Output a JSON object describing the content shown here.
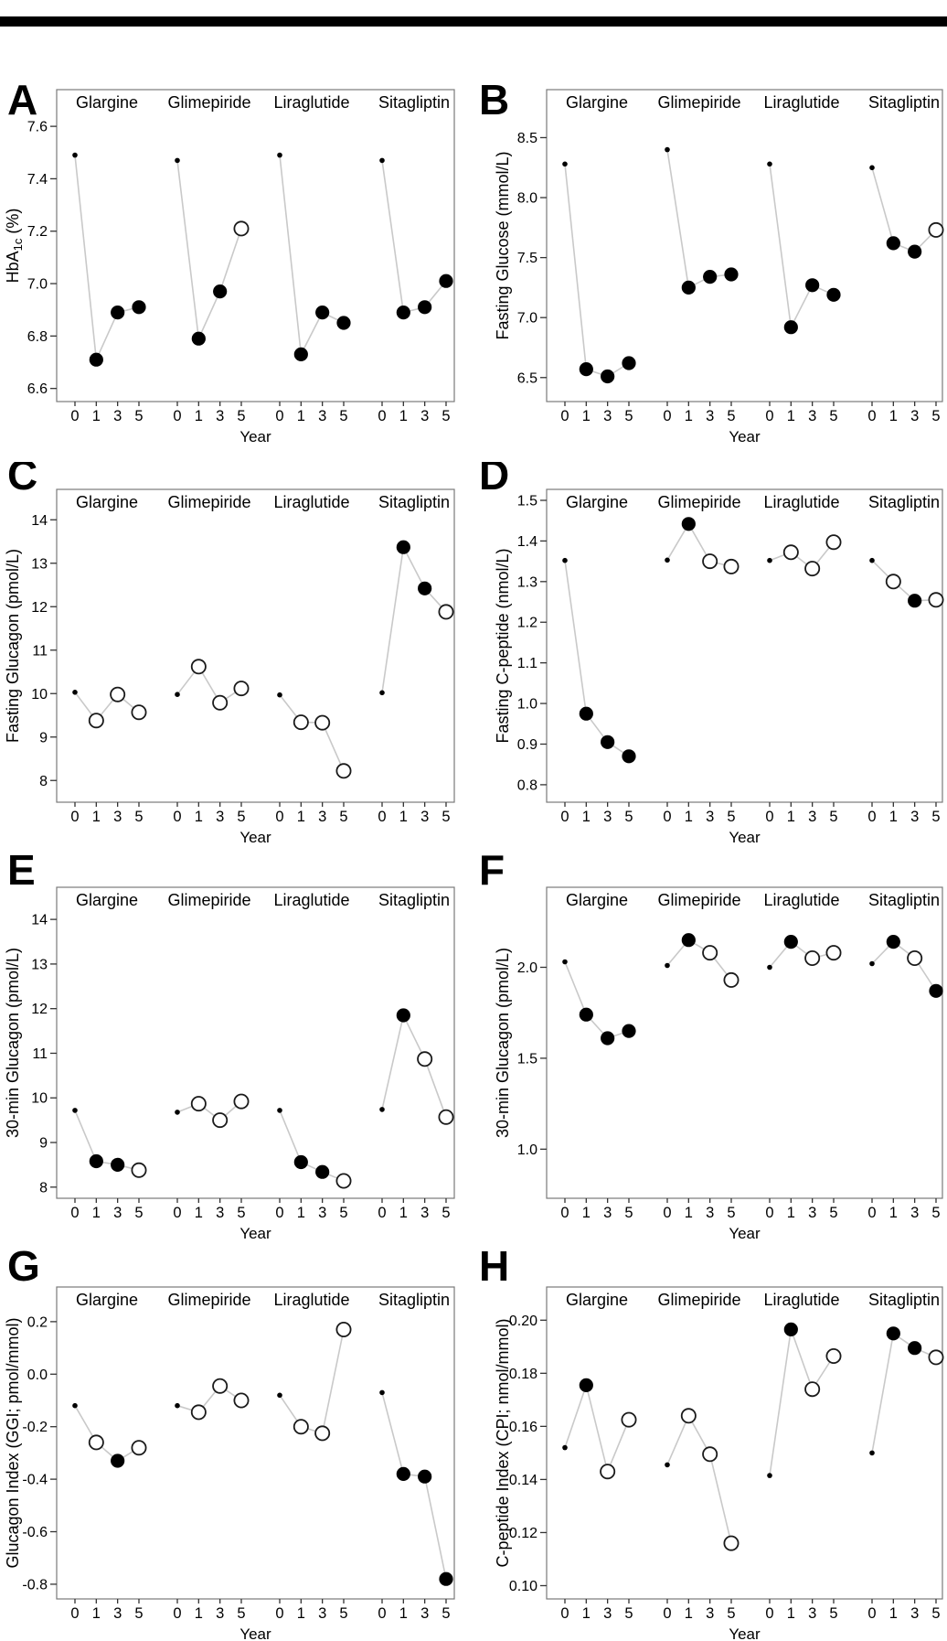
{
  "page": {
    "top_bar_color": "#000000",
    "background": "#ffffff"
  },
  "chart_data": {
    "type": "scatter",
    "layout": "grid-4rows-2cols",
    "xlabel": "Year",
    "x_years": [
      0,
      1,
      3,
      5
    ],
    "x_tick_labels": [
      "0",
      "1",
      "3",
      "5"
    ],
    "group_names": [
      "Glargine",
      "Glimepiride",
      "Liraglutide",
      "Sitagliptin"
    ],
    "marker_meaning": {
      "dot": "small baseline dot at year 0",
      "filled": "filled circle",
      "open": "open circle"
    },
    "style": {
      "marker_color": "#000000",
      "open_marker_fill": "#ffffff",
      "open_marker_stroke": "#1a1a1a",
      "connector_line_color": "#c9c9c9",
      "frame_color": "#7a7a7a",
      "tick_color": "#333333",
      "text_color": "#000000"
    },
    "panels": [
      {
        "id": "A",
        "ylabel": "HbA1c (%)",
        "ylabel_parts": [
          {
            "t": "HbA"
          },
          {
            "t": "1c",
            "sub": true
          },
          {
            "t": " (%)"
          }
        ],
        "yticks": [
          6.6,
          6.8,
          7.0,
          7.2,
          7.4,
          7.6
        ],
        "ytick_labels": [
          "6.6",
          "6.8",
          "7.0",
          "7.2",
          "7.4",
          "7.6"
        ],
        "ylim": [
          6.55,
          7.74
        ],
        "series": [
          {
            "group": "Glargine",
            "values": [
              7.49,
              6.71,
              6.89,
              6.91
            ],
            "markers": [
              "dot",
              "filled",
              "filled",
              "filled"
            ]
          },
          {
            "group": "Glimepiride",
            "values": [
              7.47,
              6.79,
              6.97,
              7.21
            ],
            "markers": [
              "dot",
              "filled",
              "filled",
              "open"
            ]
          },
          {
            "group": "Liraglutide",
            "values": [
              7.49,
              6.73,
              6.89,
              6.85
            ],
            "markers": [
              "dot",
              "filled",
              "filled",
              "filled"
            ]
          },
          {
            "group": "Sitagliptin",
            "values": [
              7.47,
              6.89,
              6.91,
              7.01
            ],
            "markers": [
              "dot",
              "filled",
              "filled",
              "filled"
            ]
          }
        ]
      },
      {
        "id": "B",
        "ylabel": "Fasting Glucose (mmol/L)",
        "ylabel_parts": [
          {
            "t": "Fasting Glucose (mmol/L)"
          }
        ],
        "yticks": [
          6.5,
          7.0,
          7.5,
          8.0,
          8.5
        ],
        "ytick_labels": [
          "6.5",
          "7.0",
          "7.5",
          "8.0",
          "8.5"
        ],
        "ylim": [
          6.3,
          8.9
        ],
        "series": [
          {
            "group": "Glargine",
            "values": [
              8.28,
              6.57,
              6.51,
              6.62
            ],
            "markers": [
              "dot",
              "filled",
              "filled",
              "filled"
            ]
          },
          {
            "group": "Glimepiride",
            "values": [
              8.4,
              7.25,
              7.34,
              7.36
            ],
            "markers": [
              "dot",
              "filled",
              "filled",
              "filled"
            ]
          },
          {
            "group": "Liraglutide",
            "values": [
              8.28,
              6.92,
              7.27,
              7.19
            ],
            "markers": [
              "dot",
              "filled",
              "filled",
              "filled"
            ]
          },
          {
            "group": "Sitagliptin",
            "values": [
              8.25,
              7.62,
              7.55,
              7.73
            ],
            "markers": [
              "dot",
              "filled",
              "filled",
              "open"
            ]
          }
        ]
      },
      {
        "id": "C",
        "ylabel": "Fasting Glucagon (pmol/L)",
        "ylabel_parts": [
          {
            "t": "Fasting Glucagon (pmol/L)"
          }
        ],
        "yticks": [
          8,
          9,
          10,
          11,
          12,
          13,
          14
        ],
        "ytick_labels": [
          "8",
          "9",
          "10",
          "11",
          "12",
          "13",
          "14"
        ],
        "ylim": [
          7.5,
          14.7
        ],
        "series": [
          {
            "group": "Glargine",
            "values": [
              10.03,
              9.38,
              9.98,
              9.57
            ],
            "markers": [
              "dot",
              "open",
              "open",
              "open"
            ]
          },
          {
            "group": "Glimepiride",
            "values": [
              9.98,
              10.62,
              9.79,
              10.12
            ],
            "markers": [
              "dot",
              "open",
              "open",
              "open"
            ]
          },
          {
            "group": "Liraglutide",
            "values": [
              9.97,
              9.34,
              9.33,
              8.22
            ],
            "markers": [
              "dot",
              "open",
              "open",
              "open"
            ]
          },
          {
            "group": "Sitagliptin",
            "values": [
              10.02,
              13.37,
              12.42,
              11.88
            ],
            "markers": [
              "dot",
              "filled",
              "filled",
              "open"
            ]
          }
        ]
      },
      {
        "id": "D",
        "ylabel": "Fasting C-peptide (nmol/L)",
        "ylabel_parts": [
          {
            "t": "Fasting C-peptide (nmol/L)"
          }
        ],
        "yticks": [
          0.8,
          0.9,
          1.0,
          1.1,
          1.2,
          1.3,
          1.4,
          1.5
        ],
        "ytick_labels": [
          "0.8",
          "0.9",
          "1.0",
          "1.1",
          "1.2",
          "1.3",
          "1.4",
          "1.5"
        ],
        "ylim": [
          0.757,
          1.527
        ],
        "series": [
          {
            "group": "Glargine",
            "values": [
              1.352,
              0.975,
              0.905,
              0.87
            ],
            "markers": [
              "dot",
              "filled",
              "filled",
              "filled"
            ]
          },
          {
            "group": "Glimepiride",
            "values": [
              1.353,
              1.442,
              1.35,
              1.337
            ],
            "markers": [
              "dot",
              "filled",
              "open",
              "open"
            ]
          },
          {
            "group": "Liraglutide",
            "values": [
              1.352,
              1.372,
              1.332,
              1.397
            ],
            "markers": [
              "dot",
              "open",
              "open",
              "open"
            ]
          },
          {
            "group": "Sitagliptin",
            "values": [
              1.352,
              1.3,
              1.253,
              1.255
            ],
            "markers": [
              "dot",
              "open",
              "filled",
              "open"
            ]
          }
        ]
      },
      {
        "id": "E",
        "ylabel": "30-min Glucagon (pmol/L)",
        "ylabel_parts": [
          {
            "t": "30-min Glucagon (pmol/L)"
          }
        ],
        "yticks": [
          8,
          9,
          10,
          11,
          12,
          13,
          14
        ],
        "ytick_labels": [
          "8",
          "9",
          "10",
          "11",
          "12",
          "13",
          "14"
        ],
        "ylim": [
          7.75,
          14.72
        ],
        "series": [
          {
            "group": "Glargine",
            "values": [
              9.72,
              8.58,
              8.5,
              8.38
            ],
            "markers": [
              "dot",
              "filled",
              "filled",
              "open"
            ]
          },
          {
            "group": "Glimepiride",
            "values": [
              9.68,
              9.87,
              9.5,
              9.92
            ],
            "markers": [
              "dot",
              "open",
              "open",
              "open"
            ]
          },
          {
            "group": "Liraglutide",
            "values": [
              9.72,
              8.56,
              8.34,
              8.14
            ],
            "markers": [
              "dot",
              "filled",
              "filled",
              "open"
            ]
          },
          {
            "group": "Sitagliptin",
            "values": [
              9.74,
              11.85,
              10.87,
              9.57
            ],
            "markers": [
              "dot",
              "filled",
              "open",
              "open"
            ]
          }
        ]
      },
      {
        "id": "F",
        "ylabel": "30-min Glucagon (pmol/L)",
        "ylabel_parts": [
          {
            "t": "30-min Glucagon (pmol/L)"
          }
        ],
        "yticks": [
          1.0,
          1.5,
          2.0
        ],
        "ytick_labels": [
          "1.0",
          "1.5",
          "2.0"
        ],
        "ylim": [
          0.73,
          2.44
        ],
        "series": [
          {
            "group": "Glargine",
            "values": [
              2.03,
              1.74,
              1.61,
              1.65
            ],
            "markers": [
              "dot",
              "filled",
              "filled",
              "filled"
            ]
          },
          {
            "group": "Glimepiride",
            "values": [
              2.01,
              2.15,
              2.08,
              1.93
            ],
            "markers": [
              "dot",
              "filled",
              "open",
              "open"
            ]
          },
          {
            "group": "Liraglutide",
            "values": [
              2.0,
              2.14,
              2.05,
              2.08
            ],
            "markers": [
              "dot",
              "filled",
              "open",
              "open"
            ]
          },
          {
            "group": "Sitagliptin",
            "values": [
              2.02,
              2.14,
              2.05,
              1.87
            ],
            "markers": [
              "dot",
              "filled",
              "open",
              "filled"
            ]
          }
        ]
      },
      {
        "id": "G",
        "ylabel": "Glucagon Index (GGI; pmol/mmol)",
        "ylabel_parts": [
          {
            "t": "Glucagon Index (GGI; pmol/mmol)"
          }
        ],
        "yticks": [
          -0.8,
          -0.6,
          -0.4,
          -0.2,
          0.0,
          0.2
        ],
        "ytick_labels": [
          "-0.8",
          "-0.6",
          "-0.4",
          "-0.2",
          "0.0",
          "0.2"
        ],
        "ylim": [
          -0.856,
          0.332
        ],
        "series": [
          {
            "group": "Glargine",
            "values": [
              -0.12,
              -0.26,
              -0.33,
              -0.28
            ],
            "markers": [
              "dot",
              "open",
              "filled",
              "open"
            ]
          },
          {
            "group": "Glimepiride",
            "values": [
              -0.12,
              -0.145,
              -0.045,
              -0.1
            ],
            "markers": [
              "dot",
              "open",
              "open",
              "open"
            ]
          },
          {
            "group": "Liraglutide",
            "values": [
              -0.08,
              -0.2,
              -0.225,
              0.17
            ],
            "markers": [
              "dot",
              "open",
              "open",
              "open"
            ]
          },
          {
            "group": "Sitagliptin",
            "values": [
              -0.07,
              -0.38,
              -0.39,
              -0.78
            ],
            "markers": [
              "dot",
              "filled",
              "filled",
              "filled"
            ]
          }
        ]
      },
      {
        "id": "H",
        "ylabel": "C-peptide Index (CPI; nmol/mmol)",
        "ylabel_parts": [
          {
            "t": "C-peptide Index (CPI; nmol/mmol)"
          }
        ],
        "yticks": [
          0.1,
          0.12,
          0.14,
          0.16,
          0.18,
          0.2
        ],
        "ytick_labels": [
          "0.10",
          "0.12",
          "0.14",
          "0.16",
          "0.18",
          "0.20"
        ],
        "ylim": [
          0.095,
          0.2125
        ],
        "series": [
          {
            "group": "Glargine",
            "values": [
              0.152,
              0.1755,
              0.143,
              0.1625
            ],
            "markers": [
              "dot",
              "filled",
              "open",
              "open"
            ]
          },
          {
            "group": "Glimepiride",
            "values": [
              0.1455,
              0.164,
              0.1495,
              0.116
            ],
            "markers": [
              "dot",
              "open",
              "open",
              "open"
            ]
          },
          {
            "group": "Liraglutide",
            "values": [
              0.1415,
              0.1965,
              0.174,
              0.1865
            ],
            "markers": [
              "dot",
              "filled",
              "open",
              "open"
            ]
          },
          {
            "group": "Sitagliptin",
            "values": [
              0.15,
              0.195,
              0.1895,
              0.186
            ],
            "markers": [
              "dot",
              "filled",
              "filled",
              "open"
            ]
          }
        ]
      }
    ]
  }
}
